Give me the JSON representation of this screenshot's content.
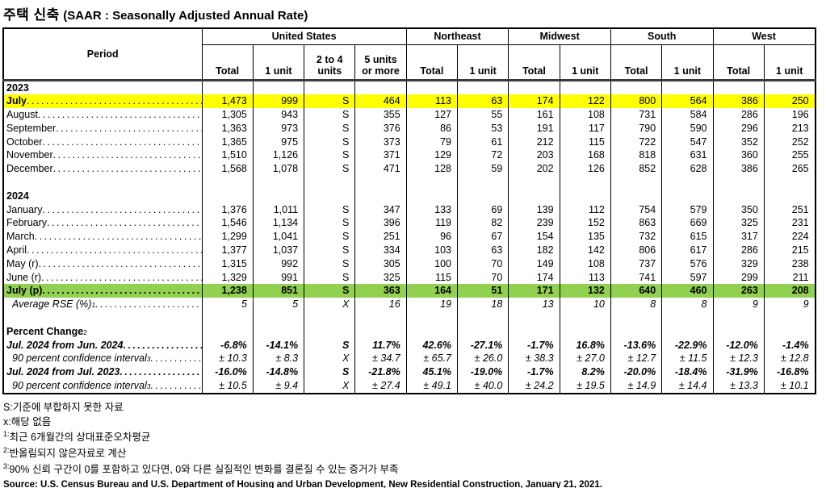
{
  "title": {
    "korean": "주택 신축",
    "english": "(SAAR : Seasonally Adjusted Annual Rate)"
  },
  "colors": {
    "highlight_yellow": "#FFFF00",
    "highlight_green": "#92D050",
    "border": "#000000",
    "header_rule": "#3a3a3a"
  },
  "table": {
    "period_header": "Period",
    "groups": [
      {
        "label": "United States",
        "columns": [
          "Total",
          "1 unit",
          "2 to 4 units",
          "5 units or more"
        ]
      },
      {
        "label": "Northeast",
        "columns": [
          "Total",
          "1 unit"
        ]
      },
      {
        "label": "Midwest",
        "columns": [
          "Total",
          "1 unit"
        ]
      },
      {
        "label": "South",
        "columns": [
          "Total",
          "1 unit"
        ]
      },
      {
        "label": "West",
        "columns": [
          "Total",
          "1 unit"
        ]
      }
    ],
    "rows": [
      {
        "type": "section",
        "label": "2023"
      },
      {
        "type": "data",
        "label": "July",
        "dots": true,
        "bold_label": true,
        "highlight": "yellow",
        "values": [
          "1,473",
          "999",
          "S",
          "464",
          "113",
          "63",
          "174",
          "122",
          "800",
          "564",
          "386",
          "250"
        ]
      },
      {
        "type": "data",
        "label": "August",
        "dots": true,
        "values": [
          "1,305",
          "943",
          "S",
          "355",
          "127",
          "55",
          "161",
          "108",
          "731",
          "584",
          "286",
          "196"
        ]
      },
      {
        "type": "data",
        "label": "September",
        "dots": true,
        "values": [
          "1,363",
          "973",
          "S",
          "376",
          "86",
          "53",
          "191",
          "117",
          "790",
          "590",
          "296",
          "213"
        ]
      },
      {
        "type": "data",
        "label": "October",
        "dots": true,
        "values": [
          "1,365",
          "975",
          "S",
          "373",
          "79",
          "61",
          "212",
          "115",
          "722",
          "547",
          "352",
          "252"
        ]
      },
      {
        "type": "data",
        "label": "November",
        "dots": true,
        "values": [
          "1,510",
          "1,126",
          "S",
          "371",
          "129",
          "72",
          "203",
          "168",
          "818",
          "631",
          "360",
          "255"
        ]
      },
      {
        "type": "data",
        "label": "December",
        "dots": true,
        "values": [
          "1,568",
          "1,078",
          "S",
          "471",
          "128",
          "59",
          "202",
          "126",
          "852",
          "628",
          "386",
          "265"
        ]
      },
      {
        "type": "blank"
      },
      {
        "type": "section",
        "label": "2024"
      },
      {
        "type": "data",
        "label": "January",
        "dots": true,
        "values": [
          "1,376",
          "1,011",
          "S",
          "347",
          "133",
          "69",
          "139",
          "112",
          "754",
          "579",
          "350",
          "251"
        ]
      },
      {
        "type": "data",
        "label": "February",
        "dots": true,
        "values": [
          "1,546",
          "1,134",
          "S",
          "396",
          "119",
          "82",
          "239",
          "152",
          "863",
          "669",
          "325",
          "231"
        ]
      },
      {
        "type": "data",
        "label": "March",
        "dots": true,
        "values": [
          "1,299",
          "1,041",
          "S",
          "251",
          "96",
          "67",
          "154",
          "135",
          "732",
          "615",
          "317",
          "224"
        ]
      },
      {
        "type": "data",
        "label": "April",
        "dots": true,
        "values": [
          "1,377",
          "1,037",
          "S",
          "334",
          "103",
          "63",
          "182",
          "142",
          "806",
          "617",
          "286",
          "215"
        ]
      },
      {
        "type": "data",
        "label": "May (r)",
        "dots": true,
        "values": [
          "1,315",
          "992",
          "S",
          "305",
          "100",
          "70",
          "149",
          "108",
          "737",
          "576",
          "329",
          "238"
        ]
      },
      {
        "type": "data",
        "label": "June (r)",
        "dots": true,
        "values": [
          "1,329",
          "991",
          "S",
          "325",
          "115",
          "70",
          "174",
          "113",
          "741",
          "597",
          "299",
          "211"
        ]
      },
      {
        "type": "data",
        "label": "July (p)",
        "dots": true,
        "bold_label": true,
        "highlight": "green",
        "values": [
          "1,238",
          "851",
          "S",
          "363",
          "164",
          "51",
          "171",
          "132",
          "640",
          "460",
          "263",
          "208"
        ]
      },
      {
        "type": "data",
        "label": "Average RSE (%)",
        "sup": "1",
        "dots": true,
        "indent": true,
        "italic": true,
        "values": [
          "5",
          "5",
          "X",
          "16",
          "19",
          "18",
          "13",
          "10",
          "8",
          "8",
          "9",
          "9"
        ]
      },
      {
        "type": "blank"
      },
      {
        "type": "section",
        "label": "Percent Change",
        "sup": "2"
      },
      {
        "type": "data",
        "label": "Jul. 2024 from Jun. 2024",
        "dots": true,
        "bold_italic": true,
        "values": [
          "-6.8%",
          "-14.1%",
          "S",
          "11.7%",
          "42.6%",
          "-27.1%",
          "-1.7%",
          "16.8%",
          "-13.6%",
          "-22.9%",
          "-12.0%",
          "-1.4%"
        ]
      },
      {
        "type": "data",
        "label": "90 percent confidence interval",
        "sup": "3",
        "dots": true,
        "indent": true,
        "italic": true,
        "values": [
          "± 10.3",
          "± 8.3",
          "X",
          "± 34.7",
          "± 65.7",
          "± 26.0",
          "± 38.3",
          "± 27.0",
          "± 12.7",
          "± 11.5",
          "± 12.3",
          "± 12.8"
        ]
      },
      {
        "type": "data",
        "label": "Jul. 2024 from Jul. 2023",
        "dots": true,
        "bold_italic": true,
        "values": [
          "-16.0%",
          "-14.8%",
          "S",
          "-21.8%",
          "45.1%",
          "-19.0%",
          "-1.7%",
          "8.2%",
          "-20.0%",
          "-18.4%",
          "-31.9%",
          "-16.8%"
        ]
      },
      {
        "type": "data",
        "label": "90 percent confidence interval",
        "sup": "3",
        "dots": true,
        "indent": true,
        "italic": true,
        "values": [
          "± 10.5",
          "± 9.4",
          "X",
          "± 27.4",
          "± 49.1",
          "± 40.0",
          "± 24.2",
          "± 19.5",
          "± 14.9",
          "± 14.4",
          "± 13.3",
          "± 10.1"
        ]
      }
    ]
  },
  "footnotes": [
    {
      "marker": "S:",
      "sup": false,
      "text": "기준에 부합하지 못한 자료"
    },
    {
      "marker": "x:",
      "sup": false,
      "text": "해당 없음"
    },
    {
      "marker": "1:",
      "sup": true,
      "text": "최근 6개월간의 상대표준오차평균"
    },
    {
      "marker": "2:",
      "sup": true,
      "text": "반올림되지 않은자료로 계산"
    },
    {
      "marker": "3:",
      "sup": true,
      "text": "90% 신뢰 구간이 0를 포함하고 있다면, 0와 다른 실질적인 변화를 결론질 수 있는 증거가 부족"
    }
  ],
  "source": "Source: U.S. Census Bureau and U.S. Department of Housing and Urban Development, New Residential Construction, January 21, 2021."
}
